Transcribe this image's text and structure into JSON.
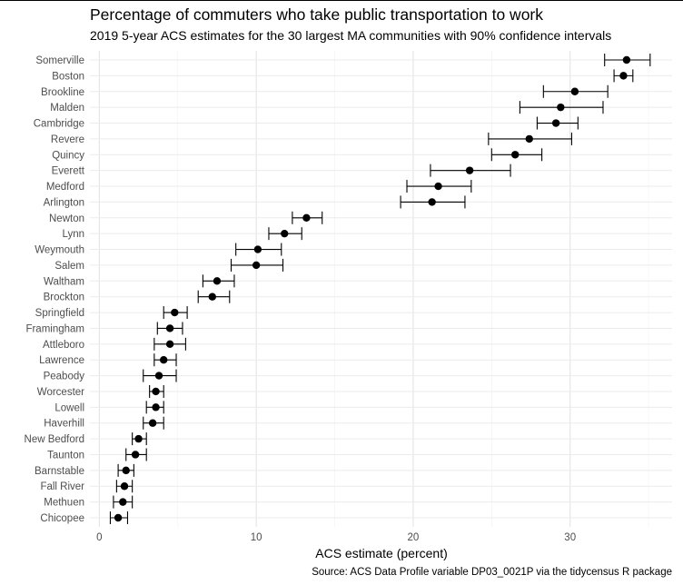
{
  "chart_data": {
    "type": "scatter",
    "title": "Percentage of commuters who take public transportation to work",
    "subtitle": "2019 5-year ACS estimates for the 30 largest MA communities with 90% confidence intervals",
    "xlabel": "ACS estimate (percent)",
    "ylabel": "",
    "caption": "Source: ACS Data Profile variable DP03_0021P via the tidycensus R package",
    "xlim": [
      -0.6,
      36.5
    ],
    "xticks": [
      0,
      10,
      20,
      30
    ],
    "grid": true,
    "error_bars": "90% confidence interval",
    "categories": [
      "Somerville",
      "Boston",
      "Brookline",
      "Malden",
      "Cambridge",
      "Revere",
      "Quincy",
      "Everett",
      "Medford",
      "Arlington",
      "Newton",
      "Lynn",
      "Weymouth",
      "Salem",
      "Waltham",
      "Brockton",
      "Springfield",
      "Framingham",
      "Attleboro",
      "Lawrence",
      "Peabody",
      "Worcester",
      "Lowell",
      "Haverhill",
      "New Bedford",
      "Taunton",
      "Barnstable",
      "Fall River",
      "Methuen",
      "Chicopee"
    ],
    "values": [
      33.6,
      33.4,
      30.3,
      29.4,
      29.1,
      27.4,
      26.5,
      23.6,
      21.6,
      21.2,
      13.2,
      11.8,
      10.1,
      10.0,
      7.5,
      7.2,
      4.8,
      4.5,
      4.5,
      4.1,
      3.8,
      3.6,
      3.6,
      3.4,
      2.5,
      2.3,
      1.7,
      1.6,
      1.5,
      1.2
    ],
    "lower": [
      32.2,
      32.8,
      28.3,
      26.8,
      27.9,
      24.8,
      25.0,
      21.1,
      19.6,
      19.2,
      12.3,
      10.8,
      8.7,
      8.4,
      6.6,
      6.3,
      4.1,
      3.7,
      3.5,
      3.5,
      2.8,
      3.2,
      3.0,
      2.8,
      2.1,
      1.7,
      1.2,
      1.1,
      0.9,
      0.7
    ],
    "upper": [
      35.1,
      34.0,
      32.4,
      32.1,
      30.5,
      30.1,
      28.2,
      26.2,
      23.7,
      23.3,
      14.2,
      12.9,
      11.6,
      11.7,
      8.6,
      8.3,
      5.6,
      5.3,
      5.5,
      4.9,
      4.9,
      4.1,
      4.1,
      4.1,
      3.0,
      3.0,
      2.2,
      2.1,
      2.1,
      1.8
    ]
  }
}
